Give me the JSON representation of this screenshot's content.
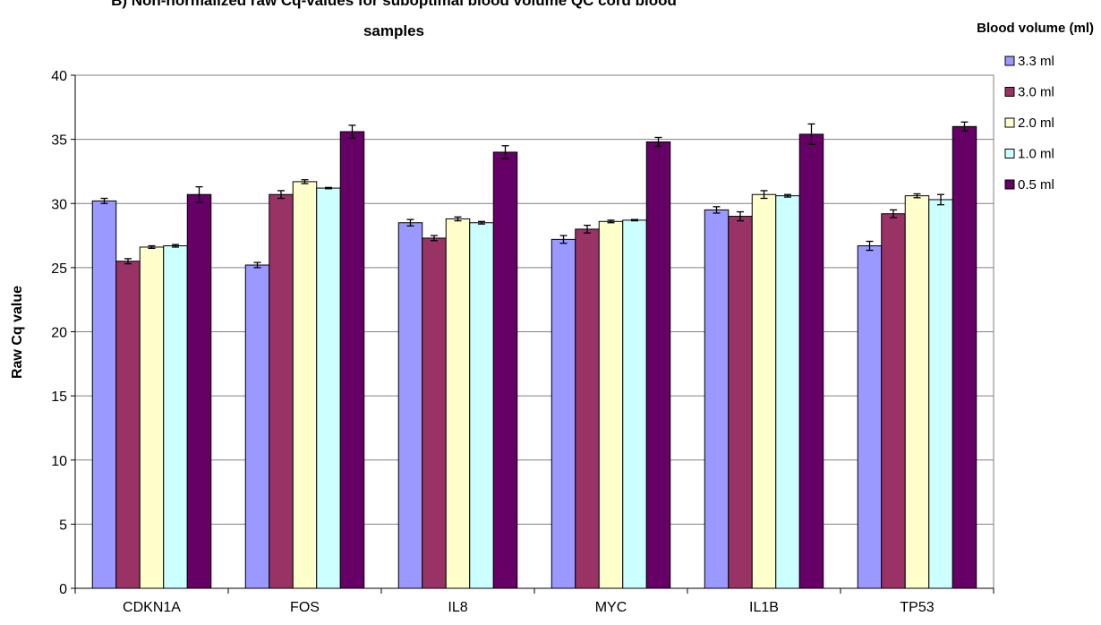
{
  "chart_data": {
    "type": "bar",
    "title": "B) Non-normalized raw Cq-values for suboptimal blood volume QC cord blood samples",
    "title_lines": [
      "B) Non-normalized raw Cq-values for suboptimal blood volume QC cord blood",
      "samples"
    ],
    "xlabel": "",
    "ylabel": "Raw Cq value",
    "ylim": [
      0,
      40
    ],
    "yticks": [
      "0",
      "5",
      "10",
      "15",
      "20",
      "25",
      "30",
      "35",
      "40"
    ],
    "grid": true,
    "legend_title": "Blood volume (ml)",
    "legend_position": "right",
    "categories": [
      "CDKN1A",
      "FOS",
      "IL8",
      "MYC",
      "IL1B",
      "TP53"
    ],
    "series": [
      {
        "name": "3.3 ml",
        "color": "#9999ff",
        "values": [
          30.2,
          25.2,
          28.5,
          27.2,
          29.5,
          26.7
        ],
        "errors": [
          0.2,
          0.2,
          0.25,
          0.3,
          0.25,
          0.35
        ]
      },
      {
        "name": "3.0 ml",
        "color": "#993366",
        "values": [
          25.5,
          30.7,
          27.3,
          28.0,
          29.0,
          29.2
        ],
        "errors": [
          0.2,
          0.3,
          0.2,
          0.3,
          0.35,
          0.3
        ]
      },
      {
        "name": "2.0 ml",
        "color": "#ffffcc",
        "values": [
          26.6,
          31.7,
          28.8,
          28.6,
          30.7,
          30.6
        ],
        "errors": [
          0.1,
          0.15,
          0.15,
          0.1,
          0.3,
          0.15
        ]
      },
      {
        "name": "1.0 ml",
        "color": "#ccffff",
        "values": [
          26.7,
          31.2,
          28.5,
          28.7,
          30.6,
          30.3
        ],
        "errors": [
          0.1,
          0.05,
          0.1,
          0.05,
          0.1,
          0.4
        ]
      },
      {
        "name": "0.5 ml",
        "color": "#660066",
        "values": [
          30.7,
          35.6,
          34.0,
          34.8,
          35.4,
          36.0
        ],
        "errors": [
          0.6,
          0.5,
          0.5,
          0.35,
          0.8,
          0.35
        ]
      }
    ]
  }
}
